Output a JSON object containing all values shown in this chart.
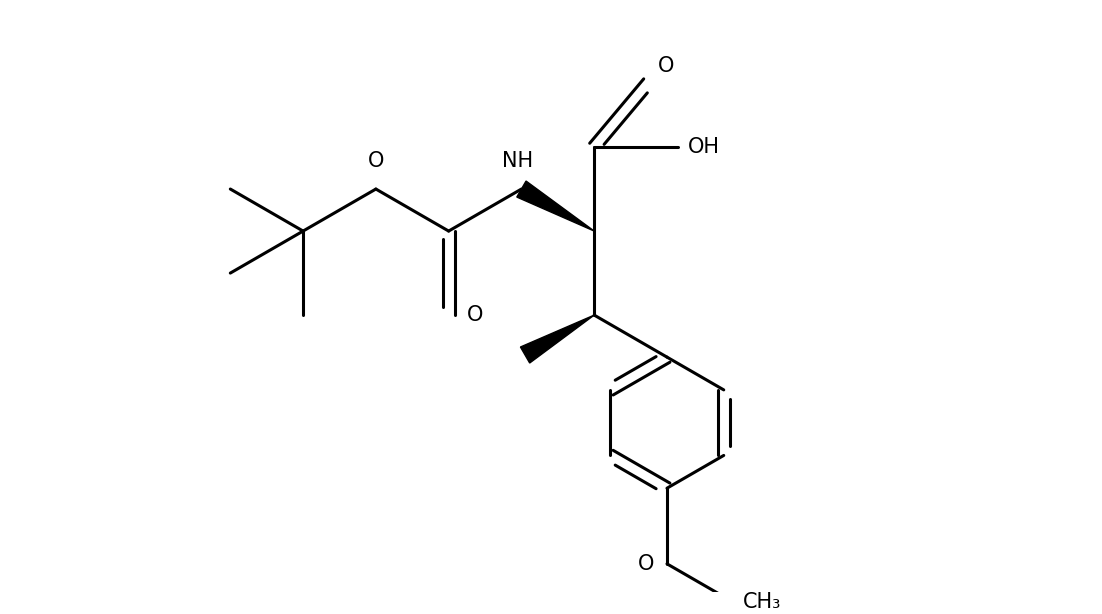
{
  "background_color": "#ffffff",
  "line_color": "#000000",
  "line_width": 2.2,
  "font_size": 15,
  "figsize": [
    11.02,
    6.14
  ],
  "dpi": 100,
  "xlim": [
    -0.3,
    9.8
  ],
  "ylim": [
    0.5,
    7.5
  ]
}
